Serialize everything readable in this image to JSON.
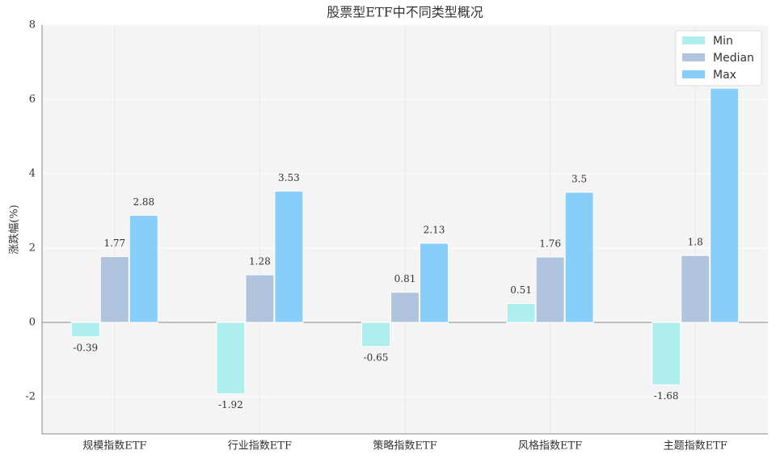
{
  "chart_data": {
    "type": "bar",
    "title": "股票型ETF中不同类型概况",
    "y_label": "涨跌幅(%)",
    "categories": [
      "规模指数ETF",
      "行业指数ETF",
      "策略指数ETF",
      "风格指数ETF",
      "主题指数ETF"
    ],
    "series": [
      {
        "name": "Min",
        "color": "#afeeee",
        "values": [
          -0.39,
          -1.92,
          -0.65,
          0.51,
          -1.68
        ]
      },
      {
        "name": "Median",
        "color": "#b0c4de",
        "values": [
          1.77,
          1.28,
          0.81,
          1.76,
          1.8
        ]
      },
      {
        "name": "Max",
        "color": "#87cefa",
        "values": [
          2.88,
          3.53,
          2.13,
          3.5,
          6.3
        ]
      }
    ],
    "ylim": [
      -3,
      8
    ],
    "yticks": [
      -2,
      0,
      2,
      4,
      6,
      8
    ],
    "grid": true,
    "legend": "upper right"
  }
}
